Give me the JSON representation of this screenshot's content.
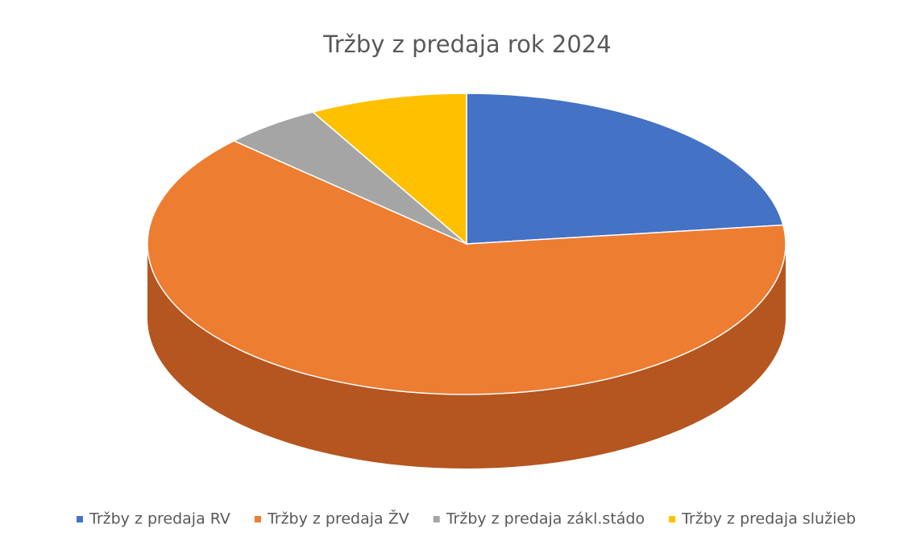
{
  "chart_data": {
    "type": "pie3d",
    "title": "Tržby z predaja rok 2024",
    "categories": [
      "Tržby z predaja RV",
      "Tržby z predaja ŽV",
      "Tržby z predaja zákl.stádo",
      "Tržby z predaja služieb"
    ],
    "values": [
      23,
      64,
      5,
      8
    ],
    "colors": [
      "#4472c4",
      "#ed7d31",
      "#a5a5a5",
      "#ffc000"
    ],
    "legend": "bottom"
  }
}
